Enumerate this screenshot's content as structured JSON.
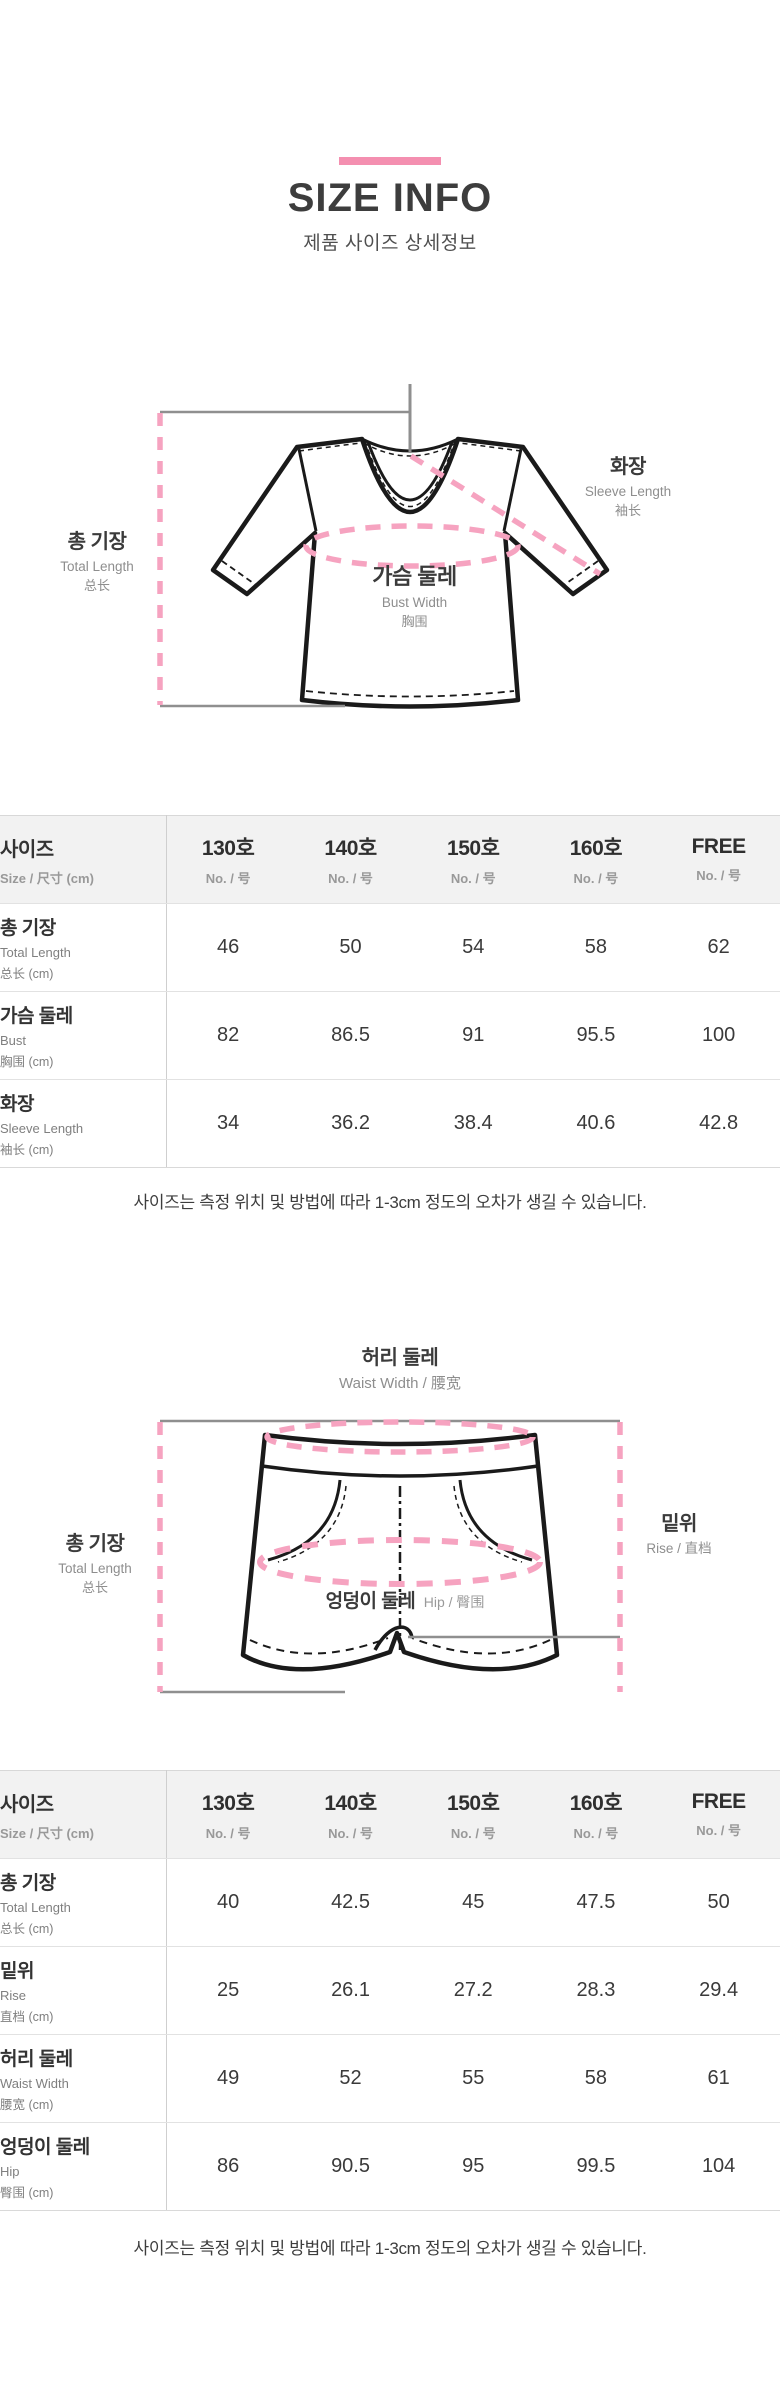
{
  "header": {
    "title": "SIZE INFO",
    "subtitle": "제품 사이즈 상세정보"
  },
  "colors": {
    "accent_pink": "#f48fb0",
    "dash_pink": "#f6a3c0",
    "measure_line_gray": "#8f8f8f"
  },
  "top_diagram": {
    "garment": "t-shirt",
    "total_length": {
      "ko": "총 기장",
      "en": "Total Length",
      "cn": "总长"
    },
    "sleeve_length": {
      "ko": "화장",
      "en": "Sleeve Length",
      "cn": "袖长"
    },
    "bust": {
      "ko": "가슴 둘레",
      "en": "Bust Width",
      "cn": "胸围"
    }
  },
  "bottom_diagram": {
    "garment": "shorts",
    "waist": {
      "ko": "허리 둘레",
      "en_cn": "Waist Width / 腰宽"
    },
    "total_length": {
      "ko": "총 기장",
      "en": "Total Length",
      "cn": "总长"
    },
    "rise": {
      "ko": "밑위",
      "en_cn": "Rise / 直档"
    },
    "hip": {
      "ko": "엉덩이 둘레",
      "en_cn": "Hip / 臀围"
    }
  },
  "note": "사이즈는 측정 위치 및 방법에 따라 1-3cm 정도의 오차가 생길 수 있습니다.",
  "tables": [
    {
      "name": "top-size-table",
      "corner": {
        "ko": "사이즈",
        "sub": "Size / 尺寸 (cm)"
      },
      "columns": [
        {
          "label": "130호",
          "sub": "No. / 号"
        },
        {
          "label": "140호",
          "sub": "No. / 号"
        },
        {
          "label": "150호",
          "sub": "No. / 号"
        },
        {
          "label": "160호",
          "sub": "No. / 号"
        },
        {
          "label": "FREE",
          "sub": "No. / 号"
        }
      ],
      "rows": [
        {
          "ko": "총 기장",
          "en": "Total Length",
          "cn": "总长 (cm)",
          "values": [
            "46",
            "50",
            "54",
            "58",
            "62"
          ]
        },
        {
          "ko": "가슴 둘레",
          "en": "Bust",
          "cn": "胸围 (cm)",
          "values": [
            "82",
            "86.5",
            "91",
            "95.5",
            "100"
          ]
        },
        {
          "ko": "화장",
          "en": "Sleeve Length",
          "cn": "袖长 (cm)",
          "values": [
            "34",
            "36.2",
            "38.4",
            "40.6",
            "42.8"
          ]
        }
      ]
    },
    {
      "name": "bottom-size-table",
      "corner": {
        "ko": "사이즈",
        "sub": "Size / 尺寸 (cm)"
      },
      "columns": [
        {
          "label": "130호",
          "sub": "No. / 号"
        },
        {
          "label": "140호",
          "sub": "No. / 号"
        },
        {
          "label": "150호",
          "sub": "No. / 号"
        },
        {
          "label": "160호",
          "sub": "No. / 号"
        },
        {
          "label": "FREE",
          "sub": "No. / 号"
        }
      ],
      "rows": [
        {
          "ko": "총 기장",
          "en": "Total Length",
          "cn": "总长 (cm)",
          "values": [
            "40",
            "42.5",
            "45",
            "47.5",
            "50"
          ]
        },
        {
          "ko": "밑위",
          "en": "Rise",
          "cn": "直档 (cm)",
          "values": [
            "25",
            "26.1",
            "27.2",
            "28.3",
            "29.4"
          ]
        },
        {
          "ko": "허리 둘레",
          "en": "Waist Width",
          "cn": "腰宽 (cm)",
          "values": [
            "49",
            "52",
            "55",
            "58",
            "61"
          ]
        },
        {
          "ko": "엉덩이 둘레",
          "en": "Hip",
          "cn": "臀围 (cm)",
          "values": [
            "86",
            "90.5",
            "95",
            "99.5",
            "104"
          ]
        }
      ]
    }
  ]
}
